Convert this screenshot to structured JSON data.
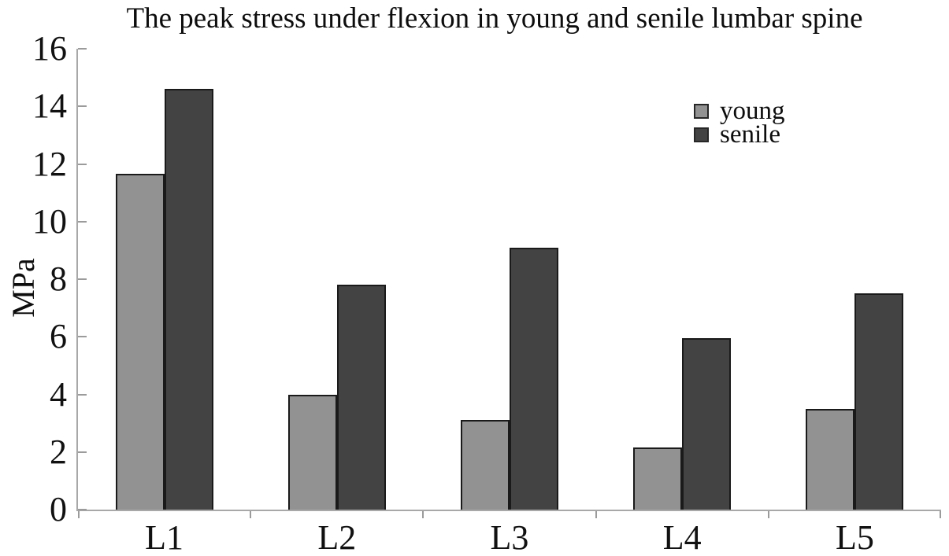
{
  "chart_data": {
    "type": "bar",
    "title": "The peak stress under flexion in young and senile lumbar spine",
    "ylabel": "MPa",
    "xlabel": "",
    "categories": [
      "L1",
      "L2",
      "L3",
      "L4",
      "L5"
    ],
    "series": [
      {
        "name": "young",
        "color": "#929292",
        "values": [
          11.65,
          4.0,
          3.1,
          2.15,
          3.5
        ]
      },
      {
        "name": "senile",
        "color": "#434343",
        "values": [
          14.6,
          7.8,
          9.1,
          5.95,
          7.5
        ]
      }
    ],
    "ylim": [
      0,
      16
    ],
    "yticks": [
      0,
      2,
      4,
      6,
      8,
      10,
      12,
      14,
      16
    ],
    "grid": false,
    "legend_position": "upper-right-inside",
    "colors": {
      "bar_border": "#1a1a1a",
      "axis_line": "#a8a8a8",
      "tick_mark": "#9b9b9b",
      "text": "#0f0f0f",
      "background": "#ffffff"
    }
  }
}
